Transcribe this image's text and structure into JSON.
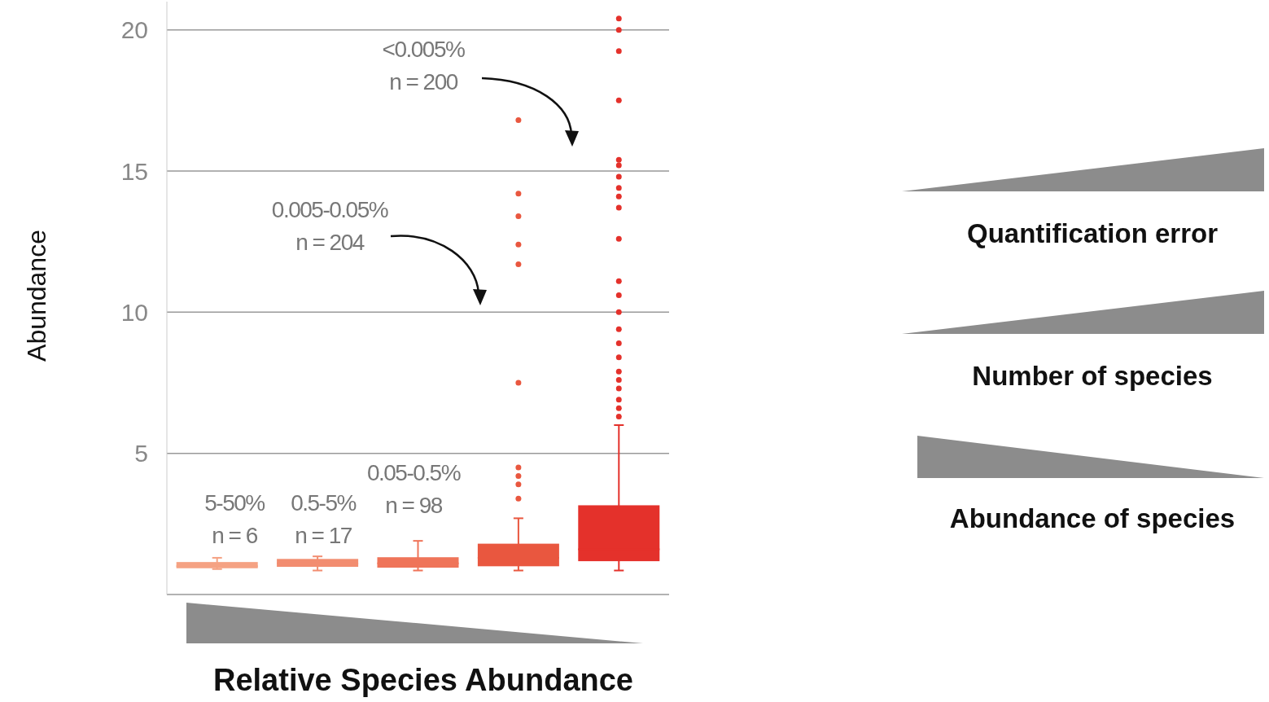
{
  "chart_data": [
    {
      "type": "box",
      "xlabel": "Relative Species Abundance",
      "ylabel": "Abundance",
      "categories": [
        null,
        null,
        null,
        null,
        null
      ],
      "colors": [
        "#f5a283",
        "#f28d70",
        "#ef7459",
        "#e9573f",
        "#e4312b"
      ],
      "boxes": [
        {
          "low": 0.9,
          "q1": 0.93,
          "median": 1.0,
          "q3": 1.15,
          "high": 1.3
        },
        {
          "low": 0.85,
          "q1": 0.98,
          "median": 1.1,
          "q3": 1.26,
          "high": 1.35
        },
        {
          "low": 0.85,
          "q1": 0.95,
          "median": 1.1,
          "q3": 1.32,
          "high": 1.9
        },
        {
          "low": 0.85,
          "q1": 1.0,
          "median": 1.3,
          "q3": 1.8,
          "high": 2.7,
          "outliers": [
            3.4,
            3.9,
            4.2,
            4.5,
            7.5,
            11.7,
            12.4,
            13.4,
            14.2,
            16.8
          ]
        },
        {
          "low": 0.85,
          "q1": 1.18,
          "median": 1.6,
          "q3": 3.16,
          "high": 6.0,
          "outliers": [
            6.3,
            6.6,
            6.9,
            7.3,
            7.6,
            7.9,
            8.4,
            8.9,
            9.4,
            10.0,
            10.6,
            11.1,
            12.6,
            13.7,
            14.1,
            14.4,
            14.8,
            15.2,
            15.4,
            17.5,
            19.25,
            20.0,
            20.4
          ]
        }
      ],
      "ylim": [
        0,
        21
      ],
      "yticks": [
        {
          "value": 0,
          "label": null
        },
        5,
        10,
        15,
        20
      ],
      "grid": "y",
      "tick_labels": "y",
      "annotations": [
        "5-50%\nn = 6",
        "0.5-5%\nn = 17",
        "0.05-0.5%\nn = 98",
        "0.005-0.05%\nn = 204",
        "<0.005%\nn = 200"
      ]
    },
    {
      "type": "other",
      "annotations": [
        "Quantification error",
        "Number of species",
        "Abundance of species"
      ]
    }
  ]
}
